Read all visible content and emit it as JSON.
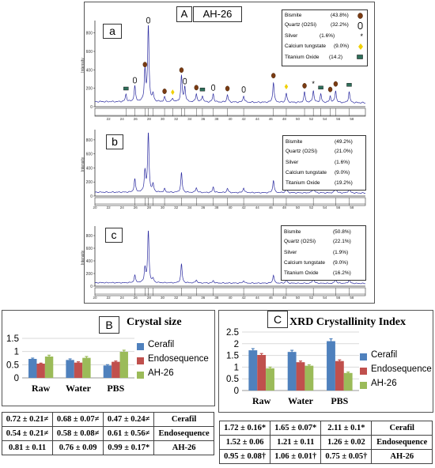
{
  "panel_a": {
    "letter": "A",
    "sample": "AH-26",
    "legend": [
      {
        "name": "Bismite",
        "pct": "(43.8%)",
        "marker": "bismite-dot"
      },
      {
        "name": "Quartz (O2Si)",
        "pct": "(32.2%)",
        "marker": "quartz-ring"
      },
      {
        "name": "Silver",
        "pct": "(1.6%)",
        "marker": "silver-star"
      },
      {
        "name": "Calcium tungstate",
        "pct": "(9.0%)",
        "marker": "tungstate-diamond"
      },
      {
        "name": "Titanium Oxide",
        "pct": "(14.2)",
        "marker": "titanium-square"
      }
    ]
  },
  "xrd_panels": [
    {
      "letter": "a",
      "legend": [
        {
          "name": "Bismite",
          "pct": "(43.8%)"
        },
        {
          "name": "Quartz (O2Si)",
          "pct": "(32.2%)"
        },
        {
          "name": "Silver",
          "pct": "(1.6%)"
        },
        {
          "name": "Calcium tungstate",
          "pct": "(9.0%)"
        },
        {
          "name": "Titanium Oxide",
          "pct": "(14.2)"
        }
      ]
    },
    {
      "letter": "b",
      "legend": [
        {
          "name": "Bismite",
          "pct": "(49.2%)"
        },
        {
          "name": "Quartz (O2Si)",
          "pct": "(21.0%)"
        },
        {
          "name": "Silver",
          "pct": "(1.6%)"
        },
        {
          "name": "Calcium tungstate",
          "pct": "(9.0%)"
        },
        {
          "name": "Titanium Oxide",
          "pct": "(19.2%)"
        }
      ]
    },
    {
      "letter": "c",
      "legend": [
        {
          "name": "Bismite",
          "pct": "(50.8%)"
        },
        {
          "name": "Quartz (O2Si)",
          "pct": "(22.1%)"
        },
        {
          "name": "Silver",
          "pct": "(1.9%)"
        },
        {
          "name": "Calcium tungstate",
          "pct": "(9.0%)"
        },
        {
          "name": "Titanium Oxide",
          "pct": "(16.2%)"
        }
      ]
    }
  ],
  "chart_data": [
    {
      "type": "line",
      "panel": "a",
      "ylabel": "Intensity",
      "yticks": [
        0,
        200,
        400,
        600,
        800
      ],
      "ylim": [
        0,
        900
      ],
      "xlim": [
        20,
        60
      ],
      "xticks": [
        22,
        24,
        26,
        28,
        30,
        32,
        34,
        36,
        38,
        40,
        42,
        44,
        46,
        48,
        50,
        52,
        54,
        56,
        58
      ],
      "peaks": [
        {
          "x": 24.6,
          "y": 120
        },
        {
          "x": 25.9,
          "y": 210
        },
        {
          "x": 27.4,
          "y": 380
        },
        {
          "x": 27.9,
          "y": 860
        },
        {
          "x": 28.6,
          "y": 120
        },
        {
          "x": 30.3,
          "y": 90
        },
        {
          "x": 31.5,
          "y": 80
        },
        {
          "x": 32.8,
          "y": 320
        },
        {
          "x": 33.3,
          "y": 200
        },
        {
          "x": 35.0,
          "y": 130
        },
        {
          "x": 35.9,
          "y": 110
        },
        {
          "x": 37.5,
          "y": 130
        },
        {
          "x": 39.6,
          "y": 120
        },
        {
          "x": 42.0,
          "y": 110
        },
        {
          "x": 46.4,
          "y": 260
        },
        {
          "x": 48.3,
          "y": 140
        },
        {
          "x": 51.0,
          "y": 150
        },
        {
          "x": 52.3,
          "y": 170
        },
        {
          "x": 53.4,
          "y": 130
        },
        {
          "x": 54.8,
          "y": 110
        },
        {
          "x": 55.6,
          "y": 170
        },
        {
          "x": 57.6,
          "y": 160
        }
      ]
    },
    {
      "type": "line",
      "panel": "b",
      "ylabel": "Intensity",
      "yticks": [
        0,
        200,
        400,
        600,
        800
      ],
      "ylim": [
        0,
        900
      ],
      "xlim": [
        20,
        60
      ],
      "xticks": [
        20,
        22,
        24,
        26,
        28,
        30,
        32,
        34,
        36,
        38,
        40,
        42,
        44,
        46,
        48,
        50,
        52,
        54,
        56,
        58
      ],
      "peaks": [
        {
          "x": 25.9,
          "y": 230
        },
        {
          "x": 27.4,
          "y": 340
        },
        {
          "x": 27.9,
          "y": 880
        },
        {
          "x": 28.6,
          "y": 150
        },
        {
          "x": 30.3,
          "y": 90
        },
        {
          "x": 32.8,
          "y": 320
        },
        {
          "x": 35.0,
          "y": 110
        },
        {
          "x": 37.5,
          "y": 120
        },
        {
          "x": 39.6,
          "y": 100
        },
        {
          "x": 42.0,
          "y": 110
        },
        {
          "x": 46.4,
          "y": 220
        },
        {
          "x": 48.3,
          "y": 110
        },
        {
          "x": 52.3,
          "y": 150
        },
        {
          "x": 55.6,
          "y": 150
        },
        {
          "x": 57.6,
          "y": 120
        }
      ]
    },
    {
      "type": "line",
      "panel": "c",
      "ylabel": "Intensity",
      "yticks": [
        0,
        200,
        400,
        600,
        800
      ],
      "ylim": [
        0,
        900
      ],
      "xlim": [
        20,
        60
      ],
      "xticks": [
        20,
        22,
        24,
        26,
        28,
        30,
        32,
        34,
        36,
        38,
        40,
        42,
        44,
        46,
        48,
        50,
        52,
        54,
        56,
        58
      ],
      "peaks": [
        {
          "x": 25.9,
          "y": 160
        },
        {
          "x": 27.4,
          "y": 270
        },
        {
          "x": 27.9,
          "y": 860
        },
        {
          "x": 28.6,
          "y": 100
        },
        {
          "x": 32.8,
          "y": 340
        },
        {
          "x": 35.0,
          "y": 90
        },
        {
          "x": 37.5,
          "y": 80
        },
        {
          "x": 42.0,
          "y": 80
        },
        {
          "x": 46.4,
          "y": 170
        },
        {
          "x": 48.3,
          "y": 100
        },
        {
          "x": 52.3,
          "y": 140
        },
        {
          "x": 55.6,
          "y": 120
        },
        {
          "x": 57.6,
          "y": 110
        }
      ]
    },
    {
      "type": "bar",
      "panel": "B",
      "title": "Crystal size",
      "categories": [
        "Raw",
        "Water",
        "PBS"
      ],
      "ylim": [
        0,
        1.5
      ],
      "yticks": [
        "0",
        "0.5",
        "1",
        "1.5"
      ],
      "series": [
        {
          "name": "Cerafil",
          "color": "#4f81bd",
          "values": [
            0.72,
            0.68,
            0.47
          ],
          "errors": [
            0.03,
            0.04,
            0.03
          ]
        },
        {
          "name": "Endosequence",
          "color": "#c0504d",
          "values": [
            0.54,
            0.58,
            0.61
          ],
          "errors": [
            0.02,
            0.03,
            0.03
          ]
        },
        {
          "name": "AH-26",
          "color": "#9bbb59",
          "values": [
            0.81,
            0.76,
            0.99
          ],
          "errors": [
            0.05,
            0.05,
            0.06
          ]
        }
      ],
      "table": [
        [
          "0.72 ± 0.21≠",
          "0.68 ± 0.07≠",
          "0.47 ± 0.24≠",
          "Cerafil"
        ],
        [
          "0.54 ± 0.21≠",
          "0.58 ± 0.08≠",
          "0.61 ± 0.56≠",
          "Endosequence"
        ],
        [
          "0.81 ± 0.11",
          "0.76 ± 0.09",
          "0.99 ± 0.17*",
          "AH-26"
        ]
      ]
    },
    {
      "type": "bar",
      "panel": "C",
      "title": "XRD Crystallinity Index",
      "categories": [
        "Raw",
        "Water",
        "PBS"
      ],
      "ylim": [
        0,
        2.5
      ],
      "yticks": [
        "0",
        "0.5",
        "1",
        "1.5",
        "2",
        "2.5"
      ],
      "series": [
        {
          "name": "Cerafil",
          "color": "#4f81bd",
          "values": [
            1.72,
            1.65,
            2.11
          ],
          "errors": [
            0.07,
            0.07,
            0.1
          ]
        },
        {
          "name": "Endosequence",
          "color": "#c0504d",
          "values": [
            1.52,
            1.21,
            1.26
          ],
          "errors": [
            0.06,
            0.05,
            0.05
          ]
        },
        {
          "name": "AH-26",
          "color": "#9bbb59",
          "values": [
            0.95,
            1.06,
            0.75
          ],
          "errors": [
            0.05,
            0.04,
            0.04
          ]
        }
      ],
      "table": [
        [
          "1.72 ± 0.16*",
          "1.65 ± 0.07*",
          "2.11 ± 0.1*",
          "Cerafil"
        ],
        [
          "1.52 ± 0.06",
          "1.21 ± 0.11",
          "1.26 ± 0.02",
          "Endosequence"
        ],
        [
          "0.95 ± 0.08†",
          "1.06 ± 0.01†",
          "0.75 ± 0.05†",
          "AH-26"
        ]
      ]
    }
  ]
}
